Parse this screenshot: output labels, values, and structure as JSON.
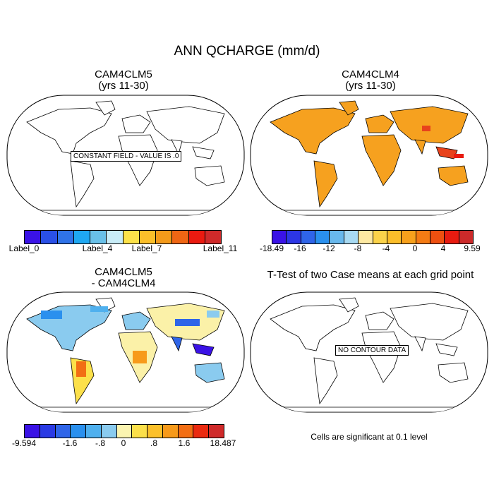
{
  "title": "ANN QCHARGE (mm/d)",
  "panels": {
    "top_left": {
      "title_line1": "CAM4CLM5",
      "title_line2": "(yrs 11-30)",
      "message": "CONSTANT FIELD - VALUE IS .0"
    },
    "top_right": {
      "title_line1": "CAM4CLM4",
      "title_line2": "(yrs 11-30)"
    },
    "bottom_left": {
      "title_line1": "CAM4CLM5",
      "title_line2": "- CAM4CLM4"
    },
    "bottom_right": {
      "title_line1": "T-Test of two Case means at each grid point",
      "message": "NO CONTOUR DATA",
      "note": "Cells are significant at 0.1 level"
    }
  },
  "colorbars": {
    "top_left": {
      "colors": [
        "#3a12e6",
        "#2a50e6",
        "#2f73e8",
        "#1fa8f2",
        "#69c0e8",
        "#c8ecf7",
        "#fce24a",
        "#fbbf2a",
        "#f49a1a",
        "#ef6614",
        "#ea1a10",
        "#cf2a2a"
      ],
      "labels": [
        "Label_0",
        "Label_4",
        "Label_7",
        "Label_11"
      ]
    },
    "top_right": {
      "colors": [
        "#3a12e6",
        "#2c36e4",
        "#2f64e8",
        "#2a90ee",
        "#68b8ec",
        "#a8daf2",
        "#fde9a2",
        "#fbd34a",
        "#fbbe2a",
        "#f7a11c",
        "#f47b14",
        "#ee5010",
        "#e81b10",
        "#cc2a2a"
      ],
      "labels": [
        "-18.49",
        "-16",
        "-12",
        "-8",
        "-4",
        "0",
        "4",
        "9.59"
      ]
    },
    "bottom_left": {
      "colors": [
        "#3a12e6",
        "#2a3ae4",
        "#2f65e8",
        "#2a90ee",
        "#4fb0ee",
        "#8acbef",
        "#fbf4b0",
        "#fce04a",
        "#fbc02a",
        "#f79a1a",
        "#f26e14",
        "#ea2a10",
        "#cf2a2a"
      ],
      "labels": [
        "-9.594",
        "-1.6",
        "-.8",
        "0",
        ".8",
        "1.6",
        "18.487"
      ]
    }
  },
  "colors": {
    "land_default": "#f6a11f",
    "land_diff": "#fbf1a8",
    "ocean": "#ffffff",
    "outline": "#000000"
  }
}
